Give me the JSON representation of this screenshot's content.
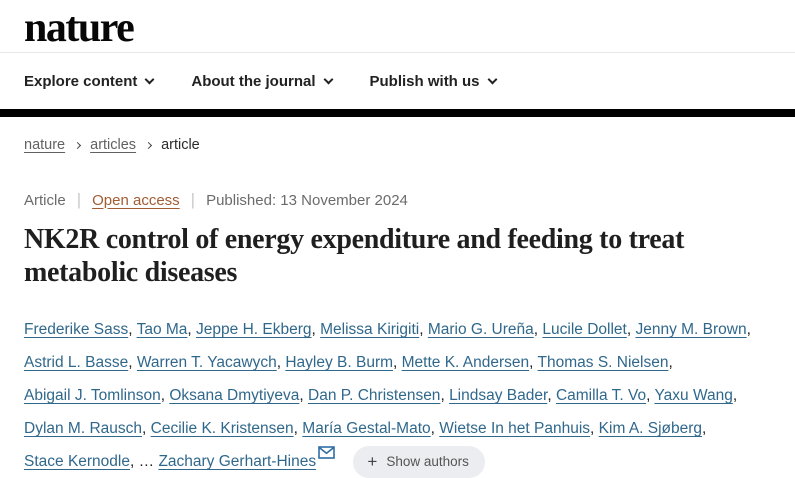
{
  "header": {
    "logo_text": "nature",
    "nav_items": [
      {
        "label": "Explore content"
      },
      {
        "label": "About the journal"
      },
      {
        "label": "Publish with us"
      }
    ]
  },
  "breadcrumb": {
    "items": [
      {
        "label": "nature",
        "is_link": true
      },
      {
        "label": "articles",
        "is_link": true
      },
      {
        "label": "article",
        "is_link": false
      }
    ]
  },
  "article": {
    "type_label": "Article",
    "access_label": "Open access",
    "published_label": "Published: 13 November 2024",
    "meta_divider": "|",
    "title": "NK2R control of energy expenditure and feeding to treat metabolic diseases",
    "authors": [
      "Frederike Sass",
      "Tao Ma",
      "Jeppe H. Ekberg",
      "Melissa Kirigiti",
      "Mario G. Ureña",
      "Lucile Dollet",
      "Jenny M. Brown",
      "Astrid L. Basse",
      "Warren T. Yacawych",
      "Hayley B. Burm",
      "Mette K. Andersen",
      "Thomas S. Nielsen",
      "Abigail J. Tomlinson",
      "Oksana Dmytiyeva",
      "Dan P. Christensen",
      "Lindsay Bader",
      "Camilla T. Vo",
      "Yaxu Wang",
      "Dylan M. Rausch",
      "Cecilie K. Kristensen",
      "María Gestal-Mato",
      "Wietse In het Panhuis",
      "Kim A. Sjøberg",
      "Stace Kernodle"
    ],
    "ellipsis": "…",
    "corresponding_author": "Zachary Gerhart-Hines",
    "show_authors": {
      "plus": "+",
      "label": "Show authors"
    }
  },
  "colors": {
    "author_link": "#30688c",
    "open_access_link": "#a25b33",
    "header_bar": "#000000",
    "text_dark": "#1f1f1f",
    "text_gray": "#6b6b6b",
    "button_bg": "#ebedf0"
  }
}
